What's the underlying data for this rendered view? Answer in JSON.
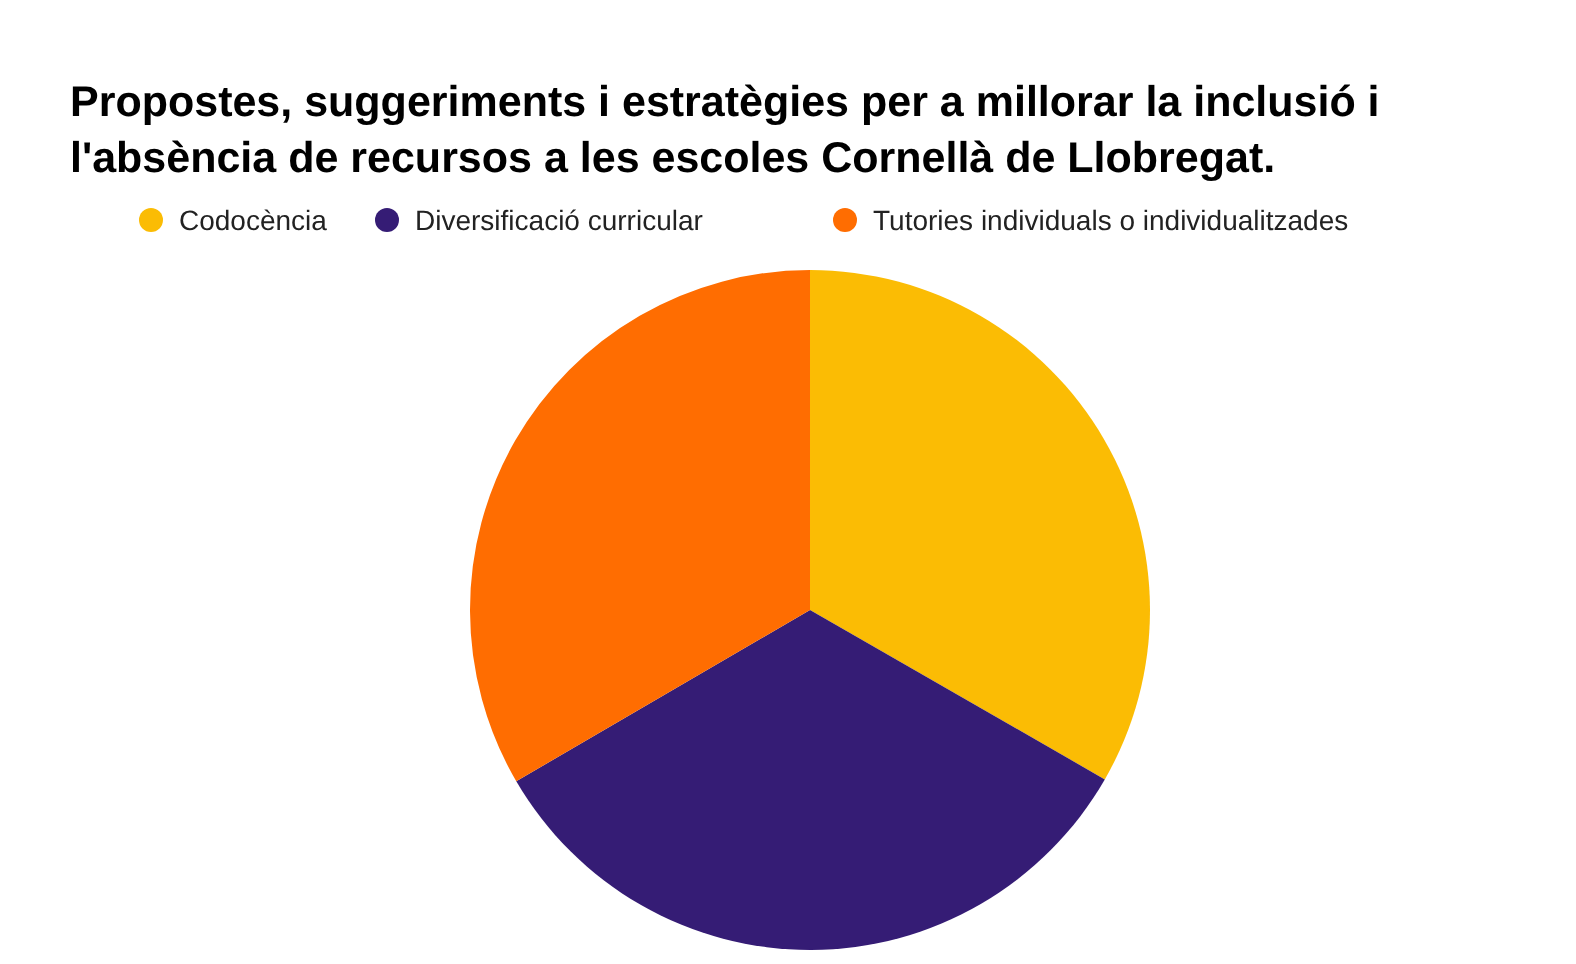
{
  "chart_data": {
    "type": "pie",
    "title": "Propostes, suggeriments i estratègies per a millorar la inclusió i l'absència de recursos a les escoles Cornellà de Llobregat.",
    "categories": [
      "Codocència",
      "Diversificació curricular",
      "Tutories individuals o individualitzades"
    ],
    "values": [
      33.3,
      33.3,
      33.4
    ],
    "colors": [
      "#fbbc04",
      "#351c75",
      "#ff6d01"
    ],
    "legend": "top"
  }
}
